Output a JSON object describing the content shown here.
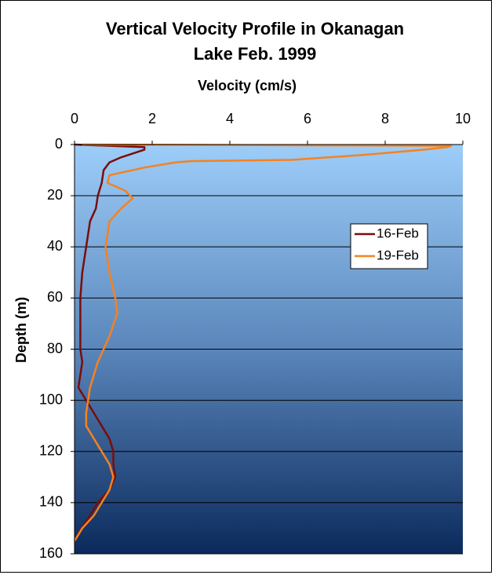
{
  "chart_data": {
    "type": "line",
    "title": "Vertical Velocity Profile in Okanagan Lake Feb. 1999",
    "x_label": "Velocity (cm/s)",
    "y_label": "Depth (m)",
    "xlim": [
      0,
      10
    ],
    "xticks": [
      0,
      2,
      4,
      6,
      8,
      10
    ],
    "x_axis_position": "top",
    "ylim": [
      0,
      160
    ],
    "yticks": [
      0,
      20,
      40,
      60,
      80,
      100,
      120,
      140,
      160
    ],
    "y_inverted": true,
    "grid": true,
    "legend": "right",
    "series": [
      {
        "name": "16-Feb",
        "color": "#7b0c0c",
        "y": [
          0,
          1,
          2,
          3,
          5,
          7,
          10,
          15,
          20,
          25,
          30,
          40,
          50,
          60,
          80,
          85,
          95,
          100,
          105,
          110,
          115,
          120,
          125,
          130,
          135,
          140,
          145,
          152,
          155
        ],
        "values": [
          0,
          1.8,
          1.8,
          1.6,
          1.2,
          0.9,
          0.75,
          0.7,
          0.6,
          0.55,
          0.4,
          0.3,
          0.2,
          0.15,
          0.15,
          0.2,
          0.1,
          0.3,
          0.5,
          0.7,
          0.9,
          1.0,
          1.0,
          1.05,
          0.9,
          0.6,
          0.4,
          0.1,
          0
        ]
      },
      {
        "name": "19-Feb",
        "color": "#f5821f",
        "y": [
          0,
          0.5,
          1,
          2,
          4,
          6,
          6.5,
          7,
          9,
          10,
          12,
          15,
          18,
          21,
          25,
          30,
          40,
          50,
          60,
          66,
          75,
          85,
          95,
          105,
          110,
          115,
          120,
          125,
          130,
          135,
          140,
          145,
          150,
          155
        ],
        "values": [
          0.2,
          9.7,
          9.6,
          9.0,
          7.5,
          5.6,
          3.0,
          2.6,
          1.8,
          1.5,
          0.9,
          0.85,
          1.3,
          1.5,
          1.2,
          0.9,
          0.8,
          0.9,
          1.05,
          1.1,
          0.9,
          0.6,
          0.4,
          0.3,
          0.3,
          0.5,
          0.7,
          0.9,
          1.0,
          0.9,
          0.7,
          0.5,
          0.2,
          0
        ]
      }
    ]
  }
}
